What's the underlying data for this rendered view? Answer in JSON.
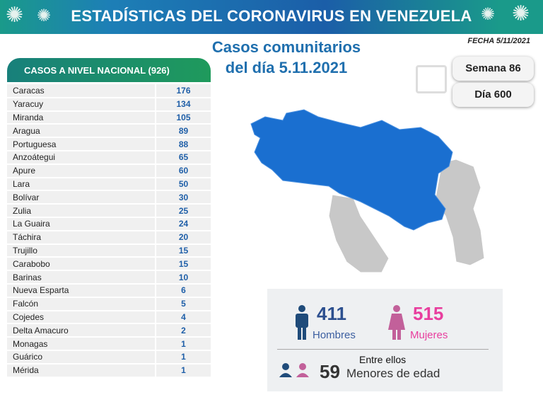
{
  "header": {
    "title": "ESTADÍSTICAS DEL CORONAVIRUS EN VENEZUELA"
  },
  "subtitle": {
    "line1": "Casos comunitarios",
    "line2": "del día 5.11.2021"
  },
  "fecha": "FECHA 5/11/2021",
  "national": {
    "label": "CASOS A NIVEL NACIONAL  (926)"
  },
  "states": [
    {
      "name": "Caracas",
      "value": "176"
    },
    {
      "name": "Yaracuy",
      "value": "134"
    },
    {
      "name": "Miranda",
      "value": "105"
    },
    {
      "name": "Aragua",
      "value": "89"
    },
    {
      "name": "Portuguesa",
      "value": "88"
    },
    {
      "name": "Anzoátegui",
      "value": "65"
    },
    {
      "name": "Apure",
      "value": "60"
    },
    {
      "name": "Lara",
      "value": "50"
    },
    {
      "name": "Bolívar",
      "value": "30"
    },
    {
      "name": "Zulia",
      "value": "25"
    },
    {
      "name": "La Guaira",
      "value": "24"
    },
    {
      "name": "Táchira",
      "value": "20"
    },
    {
      "name": "Trujillo",
      "value": "15"
    },
    {
      "name": "Carabobo",
      "value": "15"
    },
    {
      "name": "Barinas",
      "value": "10"
    },
    {
      "name": "Nueva Esparta",
      "value": "6"
    },
    {
      "name": "Falcón",
      "value": "5"
    },
    {
      "name": "Cojedes",
      "value": "4"
    },
    {
      "name": "Delta Amacuro",
      "value": "2"
    },
    {
      "name": "Monagas",
      "value": "1"
    },
    {
      "name": "Guárico",
      "value": "1"
    },
    {
      "name": "Mérida",
      "value": "1"
    }
  ],
  "week": "Semana 86",
  "day": "Día 600",
  "stats": {
    "men": "411",
    "men_label": "Hombres",
    "women": "515",
    "women_label": "Mujeres",
    "among": "Entre ellos",
    "minors": "59",
    "minors_label": "Menores de edad"
  },
  "colors": {
    "blue": "#1f6fae",
    "pink": "#e83e9e",
    "map": "#1a6fd0"
  }
}
